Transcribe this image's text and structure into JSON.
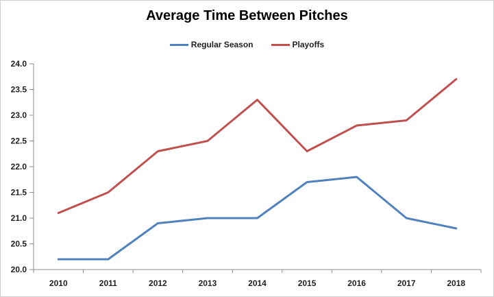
{
  "chart_data": {
    "type": "line",
    "title": "Average Time Between Pitches",
    "categories": [
      "2010",
      "2011",
      "2012",
      "2013",
      "2014",
      "2015",
      "2016",
      "2017",
      "2018"
    ],
    "series": [
      {
        "name": "Regular Season",
        "color": "#4F81BD",
        "values": [
          20.2,
          20.2,
          20.9,
          21.0,
          21.0,
          21.7,
          21.8,
          21.0,
          20.8
        ]
      },
      {
        "name": "Playoffs",
        "color": "#C0504D",
        "values": [
          21.1,
          21.5,
          22.3,
          22.5,
          23.3,
          22.3,
          22.8,
          22.9,
          23.7
        ]
      }
    ],
    "xlabel": "",
    "ylabel": "",
    "ylim": [
      20.0,
      24.0
    ],
    "ytick_step": 0.5,
    "ytick_labels": [
      "20.0",
      "20.5",
      "21.0",
      "21.5",
      "22.0",
      "22.5",
      "23.0",
      "23.5",
      "24.0"
    ],
    "grid": false,
    "legend_position": "top",
    "line_width": 3
  },
  "colors": {
    "axis": "#8C8C8C",
    "tick_text": "#1f1f1f",
    "title_text": "#000000",
    "frame_border": "#CFCFCF",
    "background": "#FFFFFF"
  }
}
